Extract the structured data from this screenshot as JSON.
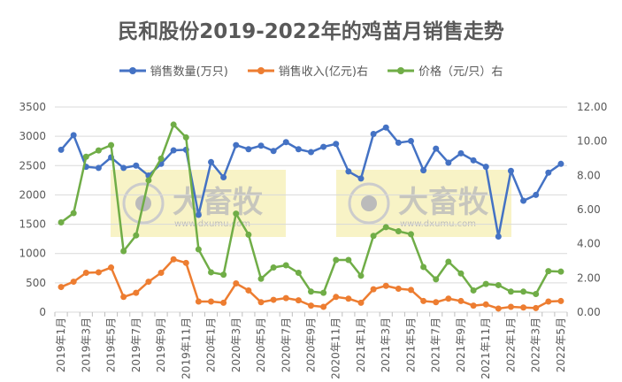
{
  "chart_data": {
    "type": "line",
    "title": "民和股份2019-2022年的鸡苗月销售走势",
    "categories": [
      "2019年1月",
      "2019年2月",
      "2019年3月",
      "2019年4月",
      "2019年5月",
      "2019年6月",
      "2019年7月",
      "2019年8月",
      "2019年9月",
      "2019年10月",
      "2019年11月",
      "2019年12月",
      "2020年1月",
      "2020年2月",
      "2020年3月",
      "2020年4月",
      "2020年5月",
      "2020年6月",
      "2020年7月",
      "2020年8月",
      "2020年9月",
      "2020年10月",
      "2020年11月",
      "2020年12月",
      "2021年1月",
      "2021年2月",
      "2021年3月",
      "2021年4月",
      "2021年5月",
      "2021年6月",
      "2021年7月",
      "2021年8月",
      "2021年9月",
      "2021年10月",
      "2021年11月",
      "2021年12月",
      "2022年1月",
      "2022年2月",
      "2022年3月",
      "2022年4月",
      "2022年5月"
    ],
    "x_tick_labels": [
      "2019年1月",
      "2019年3月",
      "2019年5月",
      "2019年7月",
      "2019年9月",
      "2019年11月",
      "2020年1月",
      "2020年3月",
      "2020年5月",
      "2020年7月",
      "2020年9月",
      "2020年11月",
      "2021年1月",
      "2021年3月",
      "2021年5月",
      "2021年7月",
      "2021年9月",
      "2021年11月",
      "2022年1月",
      "2022年3月",
      "2022年5月"
    ],
    "y_left": {
      "range": [
        0,
        3500
      ],
      "ticks": [
        "0",
        "500",
        "1000",
        "1500",
        "2000",
        "2500",
        "3000",
        "3500"
      ]
    },
    "y_right": {
      "range": [
        0,
        12
      ],
      "ticks": [
        "0.00",
        "2.00",
        "4.00",
        "6.00",
        "8.00",
        "10.00",
        "12.00"
      ]
    },
    "grid": true,
    "legend_position": "top",
    "series": [
      {
        "name": "销售数量(万只)",
        "axis": "left",
        "color": "#4472C4",
        "values": [
          2770,
          3020,
          2480,
          2460,
          2640,
          2460,
          2500,
          2330,
          2530,
          2760,
          2770,
          1660,
          2560,
          2300,
          2850,
          2780,
          2840,
          2750,
          2900,
          2780,
          2730,
          2820,
          2870,
          2400,
          2280,
          3040,
          3150,
          2890,
          2920,
          2420,
          2790,
          2550,
          2710,
          2590,
          2480,
          1290,
          2410,
          1900,
          2000,
          2380,
          2530
        ]
      },
      {
        "name": "销售收入(亿元)右",
        "axis": "right",
        "color": "#ED7D31",
        "values": [
          1.47,
          1.78,
          2.3,
          2.33,
          2.61,
          0.89,
          1.13,
          1.78,
          2.3,
          3.09,
          2.88,
          0.62,
          0.62,
          0.55,
          1.68,
          1.27,
          0.58,
          0.72,
          0.82,
          0.69,
          0.38,
          0.31,
          0.89,
          0.79,
          0.55,
          1.34,
          1.54,
          1.37,
          1.3,
          0.65,
          0.58,
          0.79,
          0.65,
          0.38,
          0.45,
          0.21,
          0.31,
          0.27,
          0.24,
          0.62,
          0.65
        ]
      },
      {
        "name": "价格（元/只）右",
        "axis": "right",
        "color": "#70AD47",
        "values": [
          5.25,
          5.79,
          9.09,
          9.46,
          9.77,
          3.57,
          4.49,
          7.71,
          8.98,
          10.97,
          10.22,
          3.67,
          2.33,
          2.19,
          5.76,
          4.53,
          1.95,
          2.61,
          2.74,
          2.3,
          1.2,
          1.13,
          3.05,
          3.05,
          2.13,
          4.46,
          4.97,
          4.73,
          4.56,
          2.64,
          1.92,
          2.95,
          2.26,
          1.27,
          1.65,
          1.58,
          1.2,
          1.2,
          1.06,
          2.4,
          2.37
        ]
      }
    ]
  },
  "watermark": {
    "logo_text": "大畜牧",
    "url_text": "www.dxumu.com"
  }
}
